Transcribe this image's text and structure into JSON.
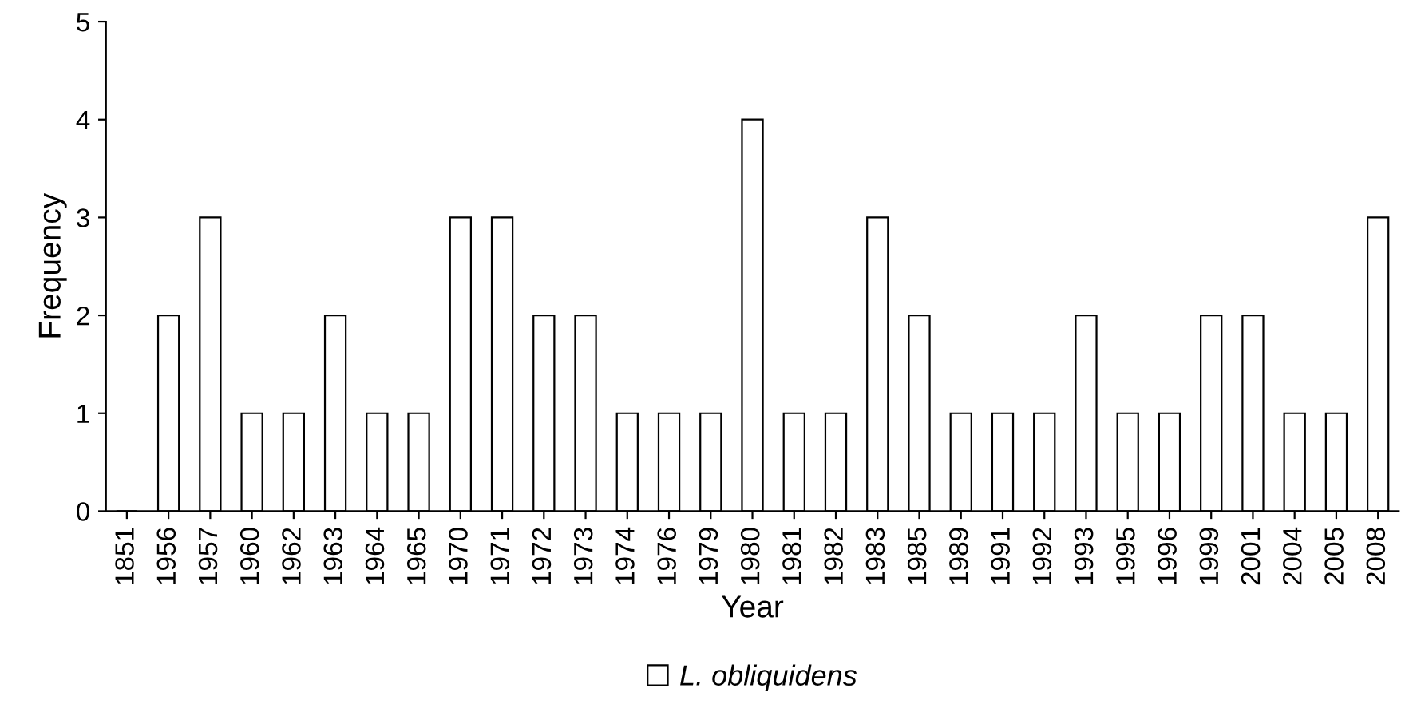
{
  "chart_data": {
    "type": "bar",
    "xlabel": "Year",
    "ylabel": "Frequency",
    "categories": [
      "1851",
      "1956",
      "1957",
      "1960",
      "1962",
      "1963",
      "1964",
      "1965",
      "1970",
      "1971",
      "1972",
      "1973",
      "1974",
      "1976",
      "1979",
      "1980",
      "1981",
      "1982",
      "1983",
      "1985",
      "1989",
      "1991",
      "1992",
      "1993",
      "1995",
      "1996",
      "1999",
      "2001",
      "2004",
      "2005",
      "2008"
    ],
    "series": [
      {
        "name": "L. obliquidens",
        "color": "#ffffff",
        "values": [
          0,
          2,
          3,
          1,
          1,
          2,
          1,
          1,
          3,
          3,
          2,
          2,
          1,
          1,
          1,
          4,
          1,
          1,
          3,
          2,
          1,
          1,
          1,
          2,
          1,
          1,
          2,
          2,
          1,
          1,
          3
        ]
      }
    ],
    "ylim": [
      0,
      5
    ],
    "yticks": [
      0,
      1,
      2,
      3,
      4,
      5
    ],
    "grid": false,
    "legend": "bottom"
  }
}
